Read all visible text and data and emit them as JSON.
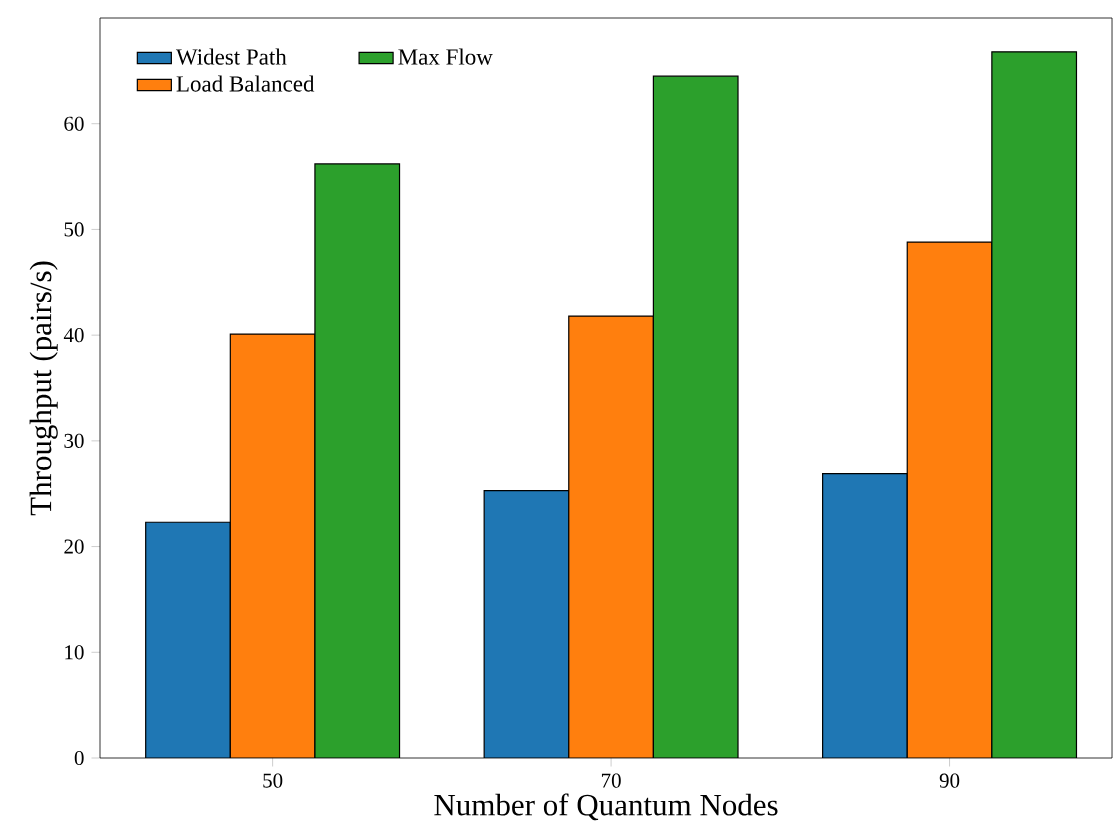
{
  "chart_data": {
    "type": "bar",
    "xlabel": "Number of Quantum Nodes",
    "ylabel": "Throughput (pairs/s)",
    "categories": [
      "50",
      "70",
      "90"
    ],
    "series": [
      {
        "name": "Widest Path",
        "color": "#1f77b4",
        "values": [
          22.3,
          25.3,
          26.9
        ]
      },
      {
        "name": "Load Balanced",
        "color": "#ff7f0e",
        "values": [
          40.1,
          41.8,
          48.8
        ]
      },
      {
        "name": "Max Flow",
        "color": "#2ca02c",
        "values": [
          56.2,
          64.5,
          66.8
        ]
      }
    ],
    "ylim": [
      0,
      70
    ],
    "yticks": [
      0,
      10,
      20,
      30,
      40,
      50,
      60
    ],
    "grid": false,
    "legend": "top left"
  }
}
